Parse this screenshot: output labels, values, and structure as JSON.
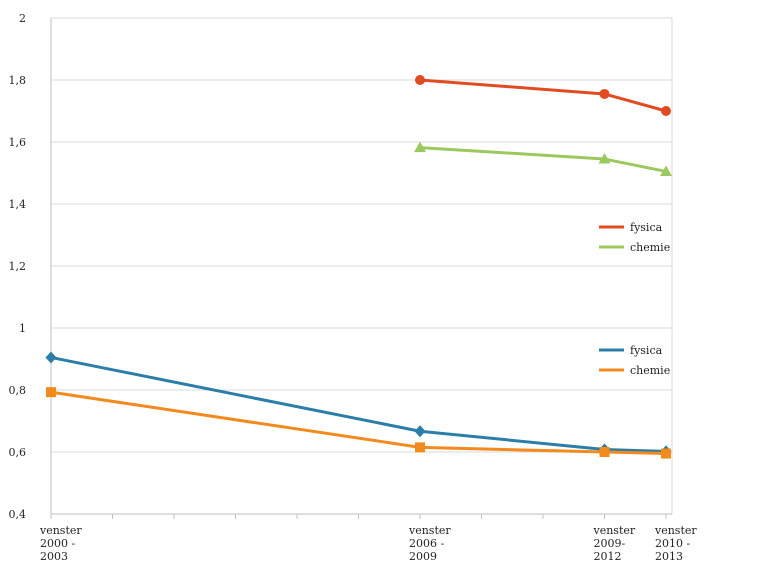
{
  "chart_data": {
    "type": "line",
    "title": "",
    "xlabel": "",
    "ylabel": "",
    "ylim": [
      0.4,
      2
    ],
    "yticks": [
      "0,4",
      "0,6",
      "0,8",
      "1",
      "1,2",
      "1,4",
      "1,6",
      "1,8",
      "2"
    ],
    "yticks_values": [
      0.4,
      0.6,
      0.8,
      1.0,
      1.2,
      1.4,
      1.6,
      1.8,
      2.0
    ],
    "x_positions": [
      2000,
      2006,
      2009,
      2010
    ],
    "xlim": [
      2000,
      2010
    ],
    "x_categories": [
      [
        "venster",
        "2000 -",
        "2003"
      ],
      [
        "venster",
        "2006 -",
        "2009"
      ],
      [
        "venster",
        "2009-",
        "2012"
      ],
      [
        "venster",
        "2010 -",
        "2013"
      ]
    ],
    "grid": "horizontal",
    "series": [
      {
        "name": "fysica",
        "color": "#e04b22",
        "marker": "circle",
        "x": [
          2006,
          2009,
          2010
        ],
        "values": [
          1.8,
          1.755,
          1.7
        ],
        "legend_group": "upper"
      },
      {
        "name": "chemie",
        "color": "#9bc95d",
        "marker": "triangle",
        "x": [
          2006,
          2009,
          2010
        ],
        "values": [
          1.582,
          1.545,
          1.505
        ],
        "legend_group": "upper"
      },
      {
        "name": "fysica",
        "color": "#2a7ea8",
        "marker": "diamond",
        "x": [
          2000,
          2006,
          2009,
          2010
        ],
        "values": [
          0.905,
          0.667,
          0.608,
          0.602
        ],
        "legend_group": "lower"
      },
      {
        "name": "chemie",
        "color": "#f28a1e",
        "marker": "square",
        "x": [
          2000,
          2006,
          2009,
          2010
        ],
        "values": [
          0.793,
          0.615,
          0.6,
          0.595
        ],
        "legend_group": "lower"
      }
    ]
  }
}
